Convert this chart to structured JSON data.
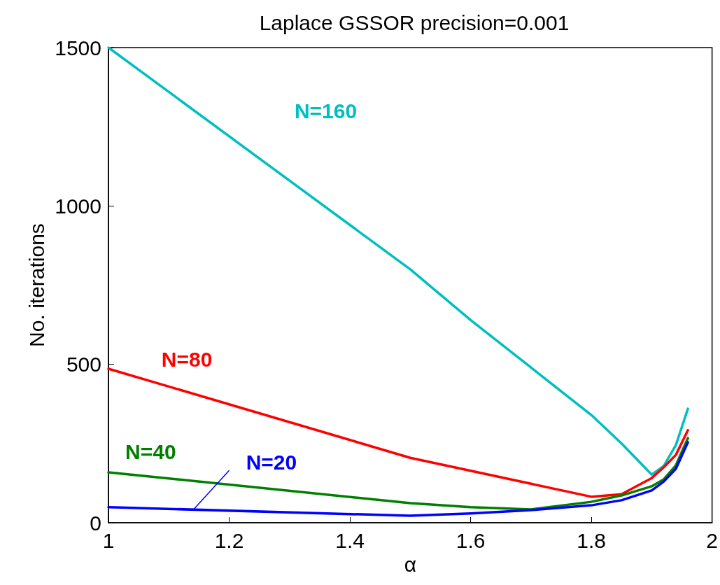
{
  "chart_data": {
    "type": "line",
    "title": "Laplace GSSOR precision=0.001",
    "xlabel": "α",
    "ylabel": "No. iterations",
    "x": [
      1,
      1.5,
      1.6,
      1.7,
      1.8,
      1.85,
      1.9,
      1.92,
      1.94,
      1.96
    ],
    "series": [
      {
        "name": "N=160",
        "color": "#00bfbf",
        "values": [
          1500,
          800,
          640,
          490,
          340,
          250,
          152,
          179,
          245,
          360
        ]
      },
      {
        "name": "N=80",
        "color": "#ff0000",
        "values": [
          486,
          205,
          164,
          123,
          82,
          90,
          141,
          175,
          214,
          292
        ]
      },
      {
        "name": "N=40",
        "color": "#007f00",
        "values": [
          159,
          62,
          49,
          42,
          66,
          86,
          115,
          137,
          181,
          267
        ]
      },
      {
        "name": "N=20",
        "color": "#0000ff",
        "values": [
          49,
          22,
          29,
          40,
          55,
          71,
          102,
          130,
          170,
          254
        ]
      }
    ],
    "xlim": [
      1,
      2
    ],
    "xticks": [
      1,
      1.2,
      1.4,
      1.6,
      1.8,
      2
    ],
    "ylim": [
      0,
      1500
    ],
    "yticks": [
      0,
      500,
      1000,
      1500
    ],
    "grid": false,
    "legend": false,
    "marker": "none",
    "line_style": "solid"
  }
}
